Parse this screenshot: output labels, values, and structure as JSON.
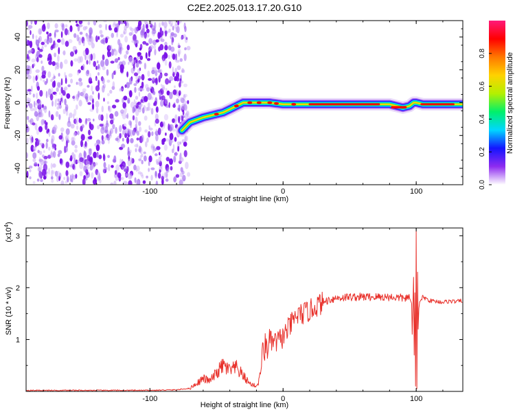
{
  "title": "C2E2.2025.013.17.20.G10",
  "chart_data": [
    {
      "type": "heatmap",
      "title": "C2E2.2025.013.17.20.G10",
      "xlabel": "Height of straight line (km)",
      "ylabel": "Frequency (Hz)",
      "xlim": [
        -193,
        135
      ],
      "ylim": [
        -50,
        50
      ],
      "xticks": [
        "-100",
        "0",
        "100"
      ],
      "xtick_values": [
        -100,
        0,
        100
      ],
      "yticks": [
        "-40",
        "-20",
        "0",
        "20",
        "40"
      ],
      "ytick_values": [
        -40,
        -20,
        0,
        20,
        40
      ],
      "noise_region_x": [
        -193,
        -75
      ],
      "ridge": {
        "x": [
          -76,
          -70,
          -60,
          -50,
          -45,
          -40,
          -35,
          -30,
          -25,
          -20,
          -10,
          0,
          20,
          40,
          60,
          80,
          85,
          90,
          95,
          98,
          100,
          105,
          120,
          135
        ],
        "y": [
          -17,
          -12,
          -9,
          -7,
          -6,
          -4,
          -2,
          0,
          0,
          0,
          0,
          -1,
          -1,
          -1,
          -1,
          -1,
          -2,
          -3,
          -2,
          0,
          0,
          -1,
          -1,
          -1
        ]
      },
      "colorbar": {
        "label": "Normalized spectral amplitude",
        "range": [
          0,
          1
        ],
        "ticks": [
          "0.0",
          "0.2",
          "0.4",
          "0.6",
          "0.8"
        ],
        "tick_values": [
          0,
          0.2,
          0.4,
          0.6,
          0.8
        ],
        "colormap": [
          "#ffffff",
          "#8e2cf0",
          "#1414ff",
          "#00d7ff",
          "#00f06a",
          "#b4f000",
          "#ffd200",
          "#ff7800",
          "#ff0000",
          "#ff1a7a"
        ]
      }
    },
    {
      "type": "line",
      "xlabel": "Height of straight line (km)",
      "ylabel": "SNR (10 * v/v)",
      "y_multiplier_label": "(x10",
      "y_multiplier_exp": "4",
      "y_multiplier_close": ")",
      "xlim": [
        -193,
        135
      ],
      "ylim": [
        0,
        3.15
      ],
      "xticks": [
        "-100",
        "0",
        "100"
      ],
      "xtick_values": [
        -100,
        0,
        100
      ],
      "yticks": [
        "1",
        "2",
        "3"
      ],
      "ytick_values": [
        1,
        2,
        3
      ],
      "color": "#e8302a",
      "series": [
        {
          "x": [
            -193,
            -150,
            -100,
            -80,
            -70,
            -65,
            -60,
            -55,
            -50,
            -45,
            -40,
            -35,
            -30,
            -25,
            -20,
            -18,
            -15,
            -10,
            -5,
            0,
            5,
            10,
            15,
            20,
            25,
            30,
            35,
            40,
            50,
            60,
            70,
            80,
            90,
            95,
            98,
            99,
            100,
            101,
            102,
            105,
            110,
            120,
            125,
            130,
            135
          ],
          "y": [
            0.02,
            0.02,
            0.02,
            0.03,
            0.06,
            0.15,
            0.25,
            0.2,
            0.35,
            0.5,
            0.4,
            0.45,
            0.3,
            0.15,
            0.1,
            0.2,
            0.8,
            0.95,
            0.95,
            1.05,
            1.25,
            1.45,
            1.5,
            1.55,
            1.65,
            1.72,
            1.77,
            1.8,
            1.82,
            1.82,
            1.82,
            1.82,
            1.8,
            1.8,
            1.6,
            0.3,
            3.1,
            0.1,
            1.7,
            1.82,
            1.75,
            1.72,
            1.74,
            1.73,
            1.75
          ]
        }
      ]
    }
  ]
}
